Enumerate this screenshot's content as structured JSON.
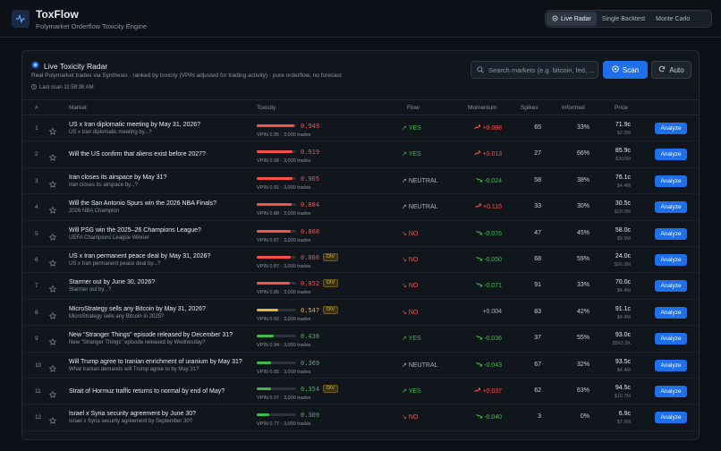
{
  "app": {
    "title": "ToxFlow",
    "subtitle": "Polymarket Orderflow Toxicity Engine",
    "icon": "activity-pulse-icon",
    "nav": [
      {
        "label": "Live Radar",
        "active": true
      },
      {
        "label": "Single Backtest",
        "active": false
      },
      {
        "label": "Monte Carlo",
        "active": false
      }
    ]
  },
  "panel": {
    "title": "Live Toxicity Radar",
    "description": "Real Polymarket trades via Synthesis · ranked by toxicity (VPIN adjusted for trading activity) · pure orderflow, no forecast",
    "last_scan": "Last scan 11:58:36 AM",
    "search_placeholder": "Search markets (e.g. bitcoin, fed, ...",
    "scan_label": "Scan",
    "auto_label": "Auto"
  },
  "columns": {
    "num": "#",
    "market": "Market",
    "toxicity": "Toxicity",
    "flow": "Flow",
    "momentum": "Momentum",
    "spikes": "Spikes",
    "informed": "Informed",
    "price": "Price"
  },
  "colors": {
    "accent": "#1f6feb",
    "high": "#f85149",
    "mid": "#e3b341",
    "low": "#3fb950"
  },
  "action_label": "Analyze",
  "rows": [
    {
      "num": "1",
      "title": "US x Iran diplomatic meeting by May 31, 2026?",
      "sub": "US x Iran diplomatic meeting by...?",
      "tox": "0.949",
      "tox_value": 0.949,
      "level": "high",
      "div": "",
      "vpin": "VPIN 0.95 · 3,000 trades",
      "flow": "YES",
      "flow_dir": "yes",
      "mom": "+0.088",
      "mom_dir": "up",
      "spikes": "65",
      "informed": "33%",
      "price": "71.9c",
      "vol": "$2.3M"
    },
    {
      "num": "2",
      "title": "Will the US confirm that aliens exist before 2027?",
      "sub": "",
      "tox": "0.919",
      "tox_value": 0.919,
      "level": "high",
      "div": "",
      "vpin": "VPIN 0.98 · 3,000 trades",
      "flow": "YES",
      "flow_dir": "yes",
      "mom": "+0.013",
      "mom_dir": "up",
      "spikes": "27",
      "informed": "66%",
      "price": "85.9c",
      "vol": "$300M"
    },
    {
      "num": "3",
      "title": "Iran closes its airspace by May 31?",
      "sub": "Iran closes its airspace by...?",
      "tox": "0.905",
      "tox_value": 0.905,
      "level": "high",
      "div": "",
      "vpin": "VPIN 0.91 · 3,000 trades",
      "flow": "NEUTRAL",
      "flow_dir": "neutral",
      "mom": "-0.024",
      "mom_dir": "down",
      "spikes": "58",
      "informed": "38%",
      "price": "76.1c",
      "vol": "$4.4M"
    },
    {
      "num": "4",
      "title": "Will the San Antonio Spurs win the 2026 NBA Finals?",
      "sub": "2026 NBA Champion",
      "tox": "0.884",
      "tox_value": 0.884,
      "level": "high",
      "div": "",
      "vpin": "VPIN 0.88 · 3,000 trades",
      "flow": "NEUTRAL",
      "flow_dir": "neutral",
      "mom": "+0.115",
      "mom_dir": "up",
      "spikes": "33",
      "informed": "30%",
      "price": "30.5c",
      "vol": "$20.0M"
    },
    {
      "num": "5",
      "title": "Will PSG win the 2025–26 Champions League?",
      "sub": "UEFA Champions League Winner",
      "tox": "0.868",
      "tox_value": 0.868,
      "level": "high",
      "div": "",
      "vpin": "VPIN 0.87 · 3,000 trades",
      "flow": "NO",
      "flow_dir": "no",
      "mom": "-0.076",
      "mom_dir": "down",
      "spikes": "47",
      "informed": "45%",
      "price": "58.0c",
      "vol": "$9.9M"
    },
    {
      "num": "6",
      "title": "US x Iran permanent peace deal by May 31, 2026?",
      "sub": "US x Iran permanent peace deal by...?",
      "tox": "0.866",
      "tox_value": 0.866,
      "level": "high",
      "div": "DIV",
      "vpin": "VPIN 0.87 · 3,000 trades",
      "flow": "NO",
      "flow_dir": "no",
      "mom": "-0.050",
      "mom_dir": "down",
      "spikes": "68",
      "informed": "59%",
      "price": "24.0c",
      "vol": "$26.3M"
    },
    {
      "num": "7",
      "title": "Starmer out by June 30, 2026?",
      "sub": "Starmer out by...?",
      "tox": "0.852",
      "tox_value": 0.852,
      "level": "high",
      "div": "DIV",
      "vpin": "VPIN 0.85 · 3,000 trades",
      "flow": "NO",
      "flow_dir": "no",
      "mom": "-0.071",
      "mom_dir": "down",
      "spikes": "91",
      "informed": "33%",
      "price": "70.0c",
      "vol": "$4.4M"
    },
    {
      "num": "8",
      "title": "MicroStrategy sells any Bitcoin by May 31, 2026?",
      "sub": "MicroStrategy sells any Bitcoin in 2025?",
      "tox": "0.547",
      "tox_value": 0.547,
      "level": "mid",
      "div": "DIV",
      "vpin": "VPIN 0.92 · 3,000 trades",
      "flow": "NO",
      "flow_dir": "no",
      "mom": "+0.004",
      "mom_dir": "flat",
      "spikes": "83",
      "informed": "42%",
      "price": "91.1c",
      "vol": "$4.4M"
    },
    {
      "num": "9",
      "title": "New \"Stranger Things\" episode released by December 31?",
      "sub": "New \"Stranger Things\" episode released by Wednesday?",
      "tox": "0.436",
      "tox_value": 0.436,
      "level": "low",
      "div": "",
      "vpin": "VPIN 0.94 · 3,000 trades",
      "flow": "YES",
      "flow_dir": "yes",
      "mom": "-0.036",
      "mom_dir": "down",
      "spikes": "37",
      "informed": "55%",
      "price": "93.0c",
      "vol": "$563.3K"
    },
    {
      "num": "10",
      "title": "Will Trump agree to Iranian enrichment of uranium by May 31?",
      "sub": "What Iranian demands will Trump agree to by May 31?",
      "tox": "0.369",
      "tox_value": 0.369,
      "level": "low",
      "div": "",
      "vpin": "VPIN 0.85 · 3,000 trades",
      "flow": "NEUTRAL",
      "flow_dir": "neutral",
      "mom": "-0.043",
      "mom_dir": "down",
      "spikes": "67",
      "informed": "32%",
      "price": "93.5c",
      "vol": "$4.4M"
    },
    {
      "num": "11",
      "title": "Strait of Hormuz traffic returns to normal by end of May?",
      "sub": "",
      "tox": "0.354",
      "tox_value": 0.354,
      "level": "low",
      "div": "DIV",
      "vpin": "VPIN 0.97 · 3,000 trades",
      "flow": "YES",
      "flow_dir": "yes",
      "mom": "+0.037",
      "mom_dir": "up",
      "spikes": "62",
      "informed": "63%",
      "price": "94.5c",
      "vol": "$10.7M"
    },
    {
      "num": "12",
      "title": "Israel x Syria security agreement by June 30?",
      "sub": "Israel x Syria security agreement by September 30?",
      "tox": "0.309",
      "tox_value": 0.309,
      "level": "low",
      "div": "",
      "vpin": "VPIN 0.77 · 3,000 trades",
      "flow": "NO",
      "flow_dir": "no",
      "mom": "-0.040",
      "mom_dir": "down",
      "spikes": "3",
      "informed": "0%",
      "price": "6.9c",
      "vol": "$7.9M"
    }
  ]
}
